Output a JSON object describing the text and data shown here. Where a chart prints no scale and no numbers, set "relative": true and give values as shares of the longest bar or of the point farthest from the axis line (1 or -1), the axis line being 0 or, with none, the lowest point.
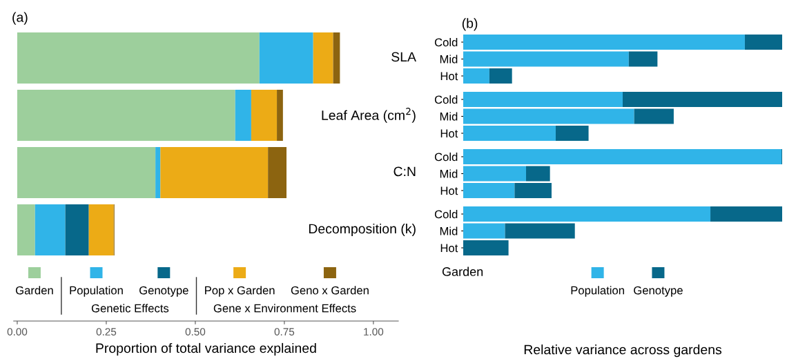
{
  "chart_data": [
    {
      "type": "bar",
      "orientation": "horizontal",
      "stacked": true,
      "title": "(a)",
      "xlabel": "Proportion of total variance explained",
      "categories": [
        "SLA",
        "Leaf Area (cm$^{2}$)",
        "C:N",
        "Decomposition (k)"
      ],
      "series": [
        {
          "name": "Garden",
          "color": "#9dcf9c",
          "values": [
            0.68,
            0.612,
            0.388,
            0.05
          ]
        },
        {
          "name": "Population",
          "color": "#30b4e8",
          "values": [
            0.151,
            0.045,
            0.014,
            0.085
          ]
        },
        {
          "name": "Genotype",
          "color": "#07688a",
          "values": [
            0,
            0,
            0,
            0.066
          ]
        },
        {
          "name": "Pop x Garden",
          "color": "#ecab16",
          "values": [
            0.056,
            0.072,
            0.302,
            0.07
          ]
        },
        {
          "name": "Geno x Garden",
          "color": "#8c6410",
          "values": [
            0.019,
            0.017,
            0.052,
            0.002
          ]
        }
      ],
      "xlim": [
        -0.01,
        1.07
      ],
      "xticks": [
        {
          "value": 0,
          "label": "0.00"
        },
        {
          "value": 0.25,
          "label": "0.25"
        },
        {
          "value": 0.5,
          "label": "0.50"
        },
        {
          "value": 0.75,
          "label": "0.75"
        },
        {
          "value": 1,
          "label": "1.00"
        }
      ],
      "tick_labels": "x",
      "grid": false,
      "legend": "bottom",
      "annotations": [
        "Genetic Effects",
        "Gene x Environment Effects"
      ]
    },
    {
      "type": "bar",
      "orientation": "horizontal",
      "stacked": true,
      "relative": true,
      "title": "(b)",
      "categories": [
        "Cold",
        "Mid",
        "Hot"
      ],
      "tick_labels": "y",
      "grid": false,
      "legend": false,
      "series": [
        {
          "color": "#30b4e8",
          "values": [
            0.883,
            0.519,
            0.082
          ]
        },
        {
          "color": "#07688a",
          "values": [
            0.117,
            0.09,
            0.071
          ]
        }
      ]
    },
    {
      "type": "bar",
      "orientation": "horizontal",
      "stacked": true,
      "relative": true,
      "categories": [
        "Cold",
        "Mid",
        "Hot"
      ],
      "tick_labels": "y",
      "grid": false,
      "legend": false,
      "series": [
        {
          "color": "#30b4e8",
          "values": [
            0.5,
            0.536,
            0.29
          ]
        },
        {
          "color": "#07688a",
          "values": [
            0.5,
            0.124,
            0.103
          ]
        }
      ]
    },
    {
      "type": "bar",
      "orientation": "horizontal",
      "stacked": true,
      "relative": true,
      "categories": [
        "Cold",
        "Mid",
        "Hot"
      ],
      "tick_labels": "y",
      "grid": false,
      "legend": false,
      "series": [
        {
          "color": "#30b4e8",
          "values": [
            0.998,
            0.197,
            0.161
          ]
        },
        {
          "color": "#07688a",
          "values": [
            0.002,
            0.075,
            0.116
          ]
        }
      ]
    },
    {
      "type": "bar",
      "orientation": "horizontal",
      "stacked": true,
      "relative": true,
      "xlabel": "Relative variance across gardens",
      "legend_title": "Garden",
      "categories": [
        "Cold",
        "Mid",
        "Hot"
      ],
      "tick_labels": "y",
      "grid": false,
      "legend": "bottom",
      "series": [
        {
          "name": "Population",
          "color": "#30b4e8",
          "values": [
            0.775,
            0.131,
            0
          ]
        },
        {
          "name": "Genotype",
          "color": "#07688a",
          "values": [
            0.225,
            0.219,
            0.142
          ]
        }
      ]
    }
  ]
}
